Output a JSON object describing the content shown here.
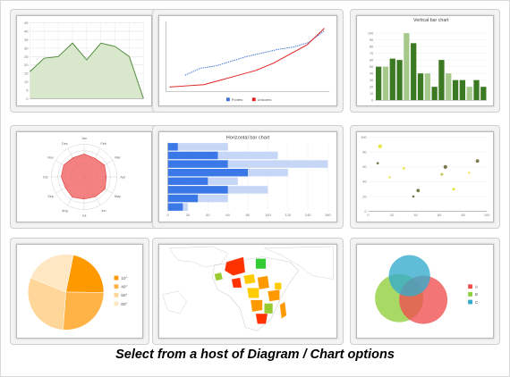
{
  "caption": "Select from a host of Diagram / Chart options",
  "chart_data": [
    {
      "type": "area",
      "x": [
        1,
        2,
        3,
        4,
        5,
        6,
        7,
        8,
        9
      ],
      "values": [
        16,
        24,
        25,
        33,
        23,
        33,
        31,
        25,
        0
      ],
      "ylim": [
        0,
        45
      ],
      "yticks": [
        "0",
        "5",
        "10",
        "15",
        "20",
        "25",
        "30",
        "35",
        "40",
        "45"
      ],
      "grid": true,
      "colors": {
        "line": "#4f8a3a",
        "fill": "#d9e8cc"
      }
    },
    {
      "type": "line",
      "x": [
        1,
        2,
        3,
        4,
        5,
        6,
        7,
        8,
        9,
        10
      ],
      "series": [
        {
          "name": "Pontes",
          "values": [
            14,
            20,
            22,
            26,
            30,
            33,
            36,
            38,
            42,
            52
          ],
          "color": "#3a6fd8"
        },
        {
          "name": "Unicorns",
          "values": [
            4,
            5,
            6,
            10,
            14,
            18,
            24,
            32,
            40,
            54
          ],
          "color": "#e02020"
        }
      ],
      "ylim": [
        0,
        60
      ],
      "legend_position": "bottom"
    },
    {
      "type": "bar",
      "title": "Vertical bar chart",
      "categories": [
        "1",
        "2",
        "3",
        "4",
        "5",
        "6",
        "7",
        "8",
        "9",
        "10",
        "11",
        "12",
        "13",
        "14",
        "15",
        "16"
      ],
      "values": [
        50,
        50,
        62,
        60,
        100,
        85,
        40,
        40,
        20,
        60,
        40,
        30,
        30,
        20,
        30,
        20
      ],
      "ylim": [
        0,
        110
      ],
      "yticks": [
        "0",
        "10",
        "20",
        "30",
        "40",
        "50",
        "60",
        "70",
        "80",
        "90",
        "100"
      ],
      "colors": {
        "dark": "#3b7a22",
        "light": "#a5c98b"
      }
    },
    {
      "type": "radar",
      "categories": [
        "Jan",
        "Feb",
        "Mar",
        "Apr",
        "May",
        "Jun",
        "Jul",
        "Aug",
        "Sep",
        "Oct",
        "Nov",
        "Dec"
      ],
      "values": [
        0.7,
        0.66,
        0.72,
        0.68,
        0.74,
        0.7,
        0.68,
        0.72,
        0.66,
        0.7,
        0.72,
        0.68
      ],
      "colors": {
        "fill": "#f36b6b",
        "stroke": "#d33"
      }
    },
    {
      "type": "bar",
      "orientation": "horizontal",
      "title": "Horizontal bar chart",
      "categories": [
        "1",
        "2",
        "3",
        "4",
        "5",
        "6",
        "7",
        "8"
      ],
      "series": [
        {
          "values": [
            10,
            50,
            60,
            80,
            40,
            60,
            30,
            15
          ],
          "color": "#3b78e7"
        },
        {
          "values": [
            60,
            110,
            160,
            120,
            70,
            100,
            60,
            20
          ],
          "color": "#c6d6f7"
        }
      ],
      "xlim": [
        0,
        160
      ],
      "xticks": [
        "0",
        "20",
        "40",
        "60",
        "80",
        "100",
        "120",
        "140",
        "160"
      ]
    },
    {
      "type": "scatter",
      "points": [
        {
          "x": 10,
          "y": 88,
          "color": "#e6e63a",
          "r": 2.2
        },
        {
          "x": 8,
          "y": 65,
          "color": "#7a7a4a",
          "r": 1.4
        },
        {
          "x": 18,
          "y": 46,
          "color": "#e6e63a",
          "r": 1.2
        },
        {
          "x": 30,
          "y": 58,
          "color": "#e6e63a",
          "r": 1.4
        },
        {
          "x": 42,
          "y": 28,
          "color": "#7a7a4a",
          "r": 2.0
        },
        {
          "x": 38,
          "y": 20,
          "color": "#7a7a4a",
          "r": 1.4
        },
        {
          "x": 65,
          "y": 60,
          "color": "#7a7a4a",
          "r": 2.2
        },
        {
          "x": 62,
          "y": 50,
          "color": "#c8c85a",
          "r": 1.6
        },
        {
          "x": 72,
          "y": 30,
          "color": "#e6e63a",
          "r": 1.6
        },
        {
          "x": 85,
          "y": 52,
          "color": "#e6e63a",
          "r": 1.2
        },
        {
          "x": 92,
          "y": 68,
          "color": "#7a7a4a",
          "r": 2.0
        }
      ],
      "xlim": [
        0,
        100
      ],
      "ylim": [
        0,
        100
      ],
      "xticks": [
        "0",
        "20",
        "40",
        "60",
        "80",
        "100"
      ],
      "yticks": [
        "0",
        "20",
        "40",
        "60",
        "80",
        "100"
      ]
    },
    {
      "type": "pie",
      "slices": [
        {
          "label": "10°",
          "value": 22,
          "color": "#ff9900"
        },
        {
          "label": "40°",
          "value": 26,
          "color": "#ffb347"
        },
        {
          "label": "50°",
          "value": 30,
          "color": "#ffd699"
        },
        {
          "label": "60°",
          "value": 22,
          "color": "#ffe7c4"
        }
      ]
    },
    {
      "type": "map",
      "regions": [
        {
          "fill": "#33cc33"
        },
        {
          "fill": "#ff3300"
        },
        {
          "fill": "#ff9900"
        },
        {
          "fill": "#ffcc00"
        },
        {
          "fill": "#99cc33"
        }
      ]
    },
    {
      "type": "venn",
      "sets": [
        {
          "name": "A",
          "color": "#f04e4e"
        },
        {
          "name": "B",
          "color": "#8fce3a"
        },
        {
          "name": "C",
          "color": "#33aacc"
        }
      ]
    }
  ]
}
